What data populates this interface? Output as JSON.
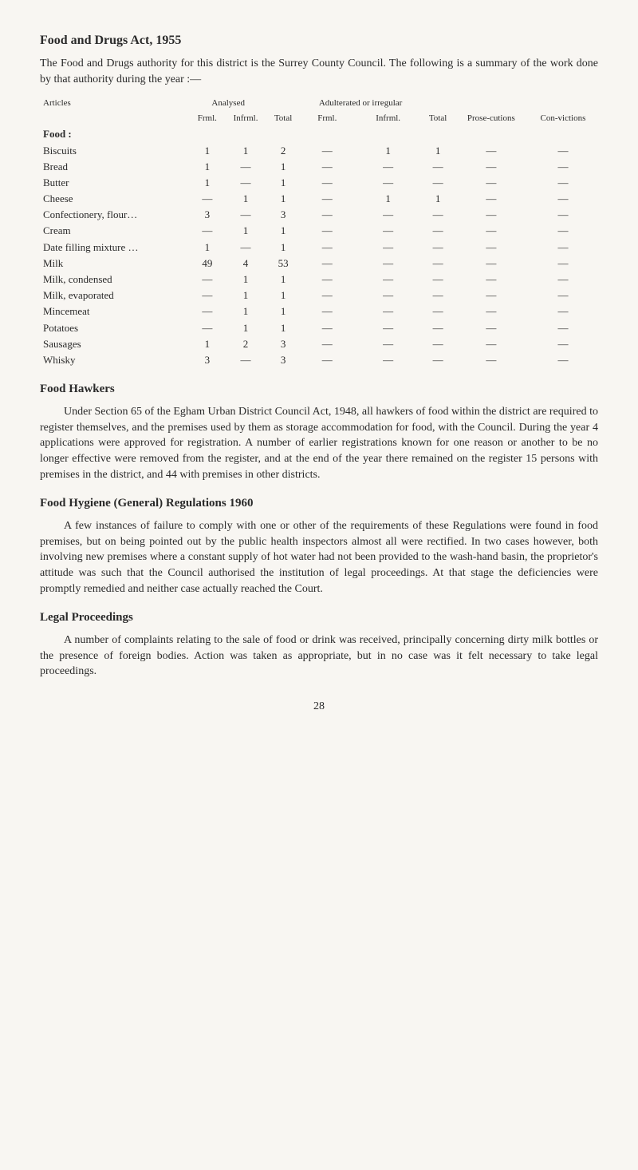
{
  "title": "Food and Drugs Act, 1955",
  "intro": "The Food and Drugs authority for this district is the Surrey County Council. The following is a summary of the work done by that authority during the year :—",
  "table": {
    "header_row1": {
      "articles": "Articles",
      "analysed": "Analysed",
      "adulterated": "Adulterated or irregular",
      "prose": "Prose-cutions",
      "con": "Con-victions"
    },
    "header_row2": {
      "frml1": "Frml.",
      "infrml1": "Infrml.",
      "total1": "Total",
      "frml2": "Frml.",
      "infrml2": "Infrml.",
      "total2": "Total"
    },
    "section_label": "Food :",
    "rows": [
      {
        "label": "Biscuits",
        "c": [
          "1",
          "1",
          "2",
          "—",
          "1",
          "1",
          "—",
          "—"
        ]
      },
      {
        "label": "Bread",
        "c": [
          "1",
          "—",
          "1",
          "—",
          "—",
          "—",
          "—",
          "—"
        ]
      },
      {
        "label": "Butter",
        "c": [
          "1",
          "—",
          "1",
          "—",
          "—",
          "—",
          "—",
          "—"
        ]
      },
      {
        "label": "Cheese",
        "c": [
          "—",
          "1",
          "1",
          "—",
          "1",
          "1",
          "—",
          "—"
        ]
      },
      {
        "label": "Confectionery, flour…",
        "c": [
          "3",
          "—",
          "3",
          "—",
          "—",
          "—",
          "—",
          "—"
        ]
      },
      {
        "label": "Cream",
        "c": [
          "—",
          "1",
          "1",
          "—",
          "—",
          "—",
          "—",
          "—"
        ]
      },
      {
        "label": "Date filling mixture …",
        "c": [
          "1",
          "—",
          "1",
          "—",
          "—",
          "—",
          "—",
          "—"
        ]
      },
      {
        "label": "Milk",
        "c": [
          "49",
          "4",
          "53",
          "—",
          "—",
          "—",
          "—",
          "—"
        ]
      },
      {
        "label": "Milk, condensed",
        "c": [
          "—",
          "1",
          "1",
          "—",
          "—",
          "—",
          "—",
          "—"
        ]
      },
      {
        "label": "Milk, evaporated",
        "c": [
          "—",
          "1",
          "1",
          "—",
          "—",
          "—",
          "—",
          "—"
        ]
      },
      {
        "label": "Mincemeat",
        "c": [
          "—",
          "1",
          "1",
          "—",
          "—",
          "—",
          "—",
          "—"
        ]
      },
      {
        "label": "Potatoes",
        "c": [
          "—",
          "1",
          "1",
          "—",
          "—",
          "—",
          "—",
          "—"
        ]
      },
      {
        "label": "Sausages",
        "c": [
          "1",
          "2",
          "3",
          "—",
          "—",
          "—",
          "—",
          "—"
        ]
      },
      {
        "label": "Whisky",
        "c": [
          "3",
          "—",
          "3",
          "—",
          "—",
          "—",
          "—",
          "—"
        ]
      }
    ]
  },
  "sections": {
    "hawkers": {
      "heading": "Food Hawkers",
      "body": "Under Section 65 of the Egham Urban District Council Act, 1948, all hawkers of food within the district are required to register themselves, and the premises used by them as storage accommodation for food, with the Council. During the year 4 applications were approved for registration. A number of earlier registrations known for one reason or another to be no longer effective were removed from the register, and at the end of the year there remained on the register 15 persons with premises in the district, and 44 with premises in other districts."
    },
    "hygiene": {
      "heading": "Food Hygiene (General) Regulations 1960",
      "body": "A few instances of failure to comply with one or other of the requirements of these Regulations were found in food premises, but on being pointed out by the public health inspectors almost all were rectified. In two cases however, both involving new premises where a constant supply of hot water had not been provided to the wash-hand basin, the proprietor's attitude was such that the Council authorised the institution of legal proceedings. At that stage the deficiencies were promptly remedied and neither case actually reached the Court."
    },
    "legal": {
      "heading": "Legal Proceedings",
      "body": "A number of complaints relating to the sale of food or drink was received, principally concerning dirty milk bottles or the presence of foreign bodies. Action was taken as appropriate, but in no case was it felt necessary to take legal proceedings."
    }
  },
  "page_number": "28"
}
